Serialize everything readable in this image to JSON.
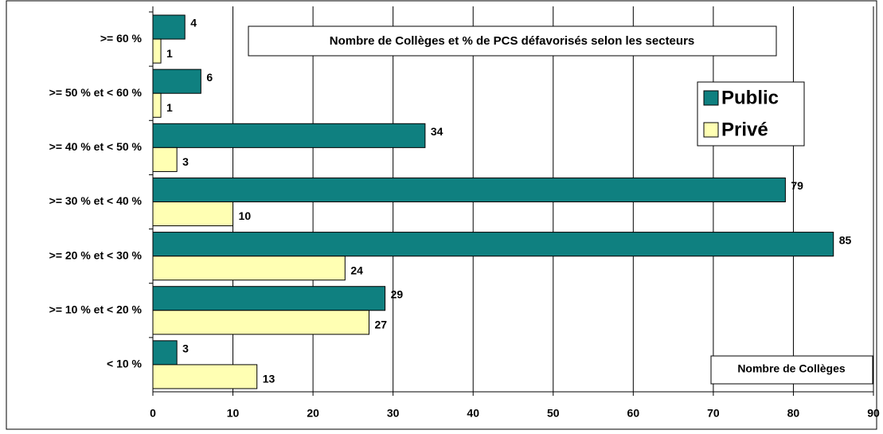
{
  "chart_data": {
    "type": "bar",
    "orientation": "horizontal",
    "title": "Nombre de Collèges et % de PCS défavorisés selon les secteurs",
    "x_label": "Nombre de Collèges",
    "categories": [
      ">= 60 %",
      ">= 50 % et < 60 %",
      ">= 40 % et < 50 %",
      ">= 30 % et < 40 %",
      ">= 20 % et < 30 %",
      ">= 10 % et < 20 %",
      "< 10 %"
    ],
    "series": [
      {
        "name": "Public",
        "color": "#0f8080",
        "values": [
          4,
          6,
          34,
          79,
          85,
          29,
          3
        ]
      },
      {
        "name": "Privé",
        "color": "#ffffb3",
        "values": [
          1,
          1,
          3,
          10,
          24,
          27,
          13
        ]
      }
    ],
    "xlim": [
      0,
      90
    ],
    "xticks": [
      0,
      10,
      20,
      30,
      40,
      50,
      60,
      70,
      80,
      90
    ],
    "grid": true,
    "legend": "upper right"
  }
}
